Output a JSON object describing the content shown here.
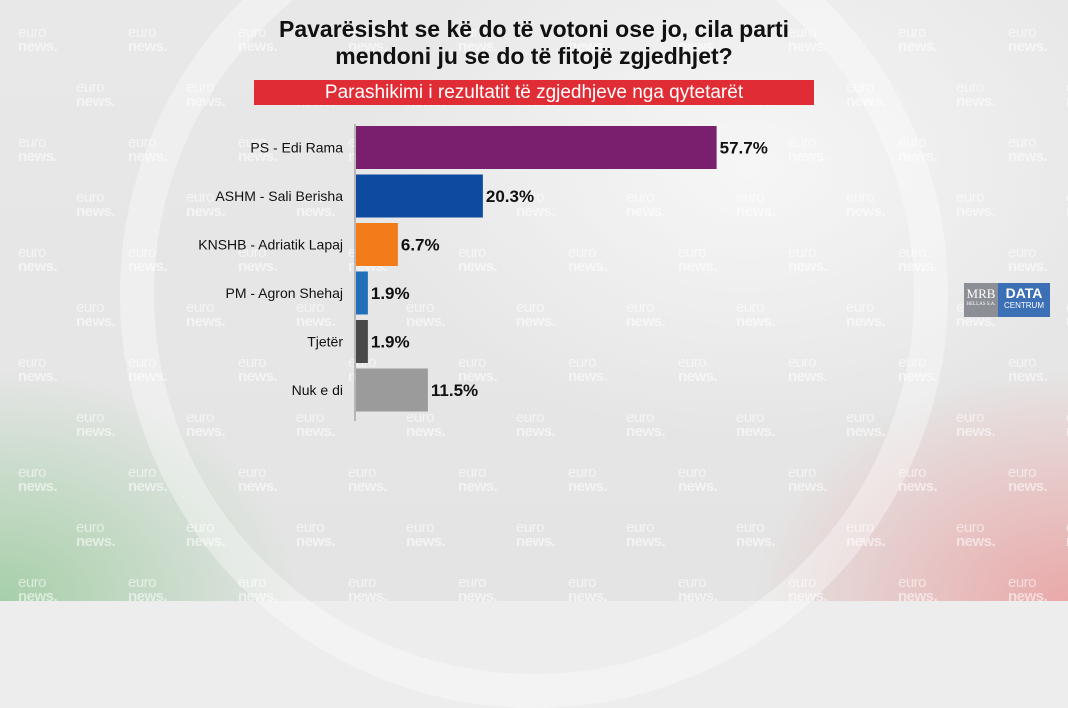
{
  "header": {
    "title_line1": "Pavarësisht se kë do të votoni ose jo, cila parti",
    "title_line2": "mendoni ju se do të fitojë zgjedhjet?",
    "subtitle": "Parashikimi i rezultatit të zgjedhjeve nga qytetarët"
  },
  "watermark": {
    "line1": "euro",
    "line2": "news."
  },
  "logo": {
    "mrb": "MRB",
    "mrb_sub": "HELLAS S.A.",
    "data": "DATA",
    "centrum": "CENTRUM"
  },
  "chart_data": {
    "type": "bar",
    "orientation": "horizontal",
    "categories": [
      "PS - Edi Rama",
      "ASHM - Sali Berisha",
      "KNSHB - Adriatik Lapaj",
      "PM - Agron Shehaj",
      "Tjetër",
      "Nuk e di"
    ],
    "values": [
      57.7,
      20.3,
      6.7,
      1.9,
      1.9,
      11.5
    ],
    "labels": [
      "57.7%",
      "20.3%",
      "6.7%",
      "1.9%",
      "1.9%",
      "11.5%"
    ],
    "colors": [
      "#7a1e6e",
      "#0e4aa0",
      "#f27b1a",
      "#1f6fb9",
      "#4a4a4a",
      "#9b9b9b"
    ],
    "xlim": [
      0,
      100
    ],
    "grid": false,
    "legend": "none"
  }
}
